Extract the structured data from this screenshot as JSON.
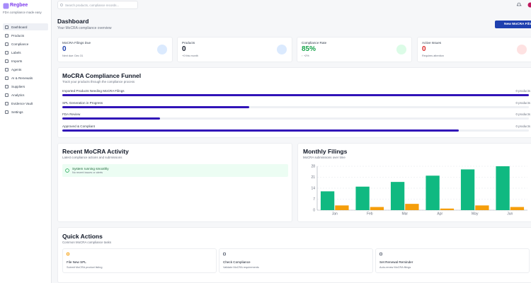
{
  "sidebar": {
    "brand": "Regbee",
    "tagline": "FDA compliance made easy",
    "nav": [
      "Dashboard",
      "Products",
      "Compliance",
      "Labels",
      "Imports",
      "Agents",
      "AI & Renewals",
      "Suppliers",
      "Analytics",
      "Evidence Vault",
      "Settings"
    ]
  },
  "search": {
    "placeholder": "Search products, compliance records..."
  },
  "header": {
    "title": "Dashboard",
    "subtitle": "Your MoCRA compliance overview",
    "button": "New MoCRA Filing"
  },
  "stats": [
    {
      "label": "MoCRA Filings Due",
      "value": "0",
      "note": "Next due: Dec 31"
    },
    {
      "label": "Products",
      "value": "0",
      "note": "+0 this month"
    },
    {
      "label": "Compliance Rate",
      "value": "85%",
      "note": "↑ +2%"
    },
    {
      "label": "Active Issues",
      "value": "0",
      "note": "Requires attention"
    }
  ],
  "funnel": {
    "title": "MoCRA Compliance Funnel",
    "subtitle": "Track your products through the compliance process",
    "stages": [
      {
        "label": "Imported Products Needing MoCRA Filings",
        "count": "0 products",
        "progress": 100
      },
      {
        "label": "SPL Generation in Progress",
        "count": "0 products",
        "progress": 40
      },
      {
        "label": "FDA Review",
        "count": "0 products",
        "progress": 21
      },
      {
        "label": "Approved & Compliant",
        "count": "0 products",
        "progress": 85
      }
    ]
  },
  "activity": {
    "title": "Recent MoCRA Activity",
    "subtitle": "Latest compliance actions and submissions",
    "status": "System running smoothly",
    "status_note": "No recent issues or alerts"
  },
  "chart_data": {
    "type": "bar",
    "title": "Monthly Filings",
    "subtitle": "MoCRA submissions over time",
    "categories": [
      "Jan",
      "Feb",
      "Mar",
      "Apr",
      "May",
      "Jun"
    ],
    "series": [
      {
        "color": "#10b981",
        "values": [
          12,
          15,
          18,
          22,
          26,
          28
        ]
      },
      {
        "color": "#f59e0b",
        "values": [
          3,
          2,
          4,
          1,
          3,
          2
        ]
      }
    ],
    "ylim": [
      0,
      28
    ],
    "yticks": [
      0,
      7,
      14,
      21,
      28
    ],
    "grid": true
  },
  "quick_actions": {
    "title": "Quick Actions",
    "subtitle": "Common MoCRA compliance tasks",
    "items": [
      {
        "title": "File New SPL",
        "note": "Submit MoCRA product listing"
      },
      {
        "title": "Check Compliance",
        "note": "Validate MoCRA requirements"
      },
      {
        "title": "Set Renewal Reminder",
        "note": "Auto-renew MoCRA filings"
      }
    ]
  }
}
